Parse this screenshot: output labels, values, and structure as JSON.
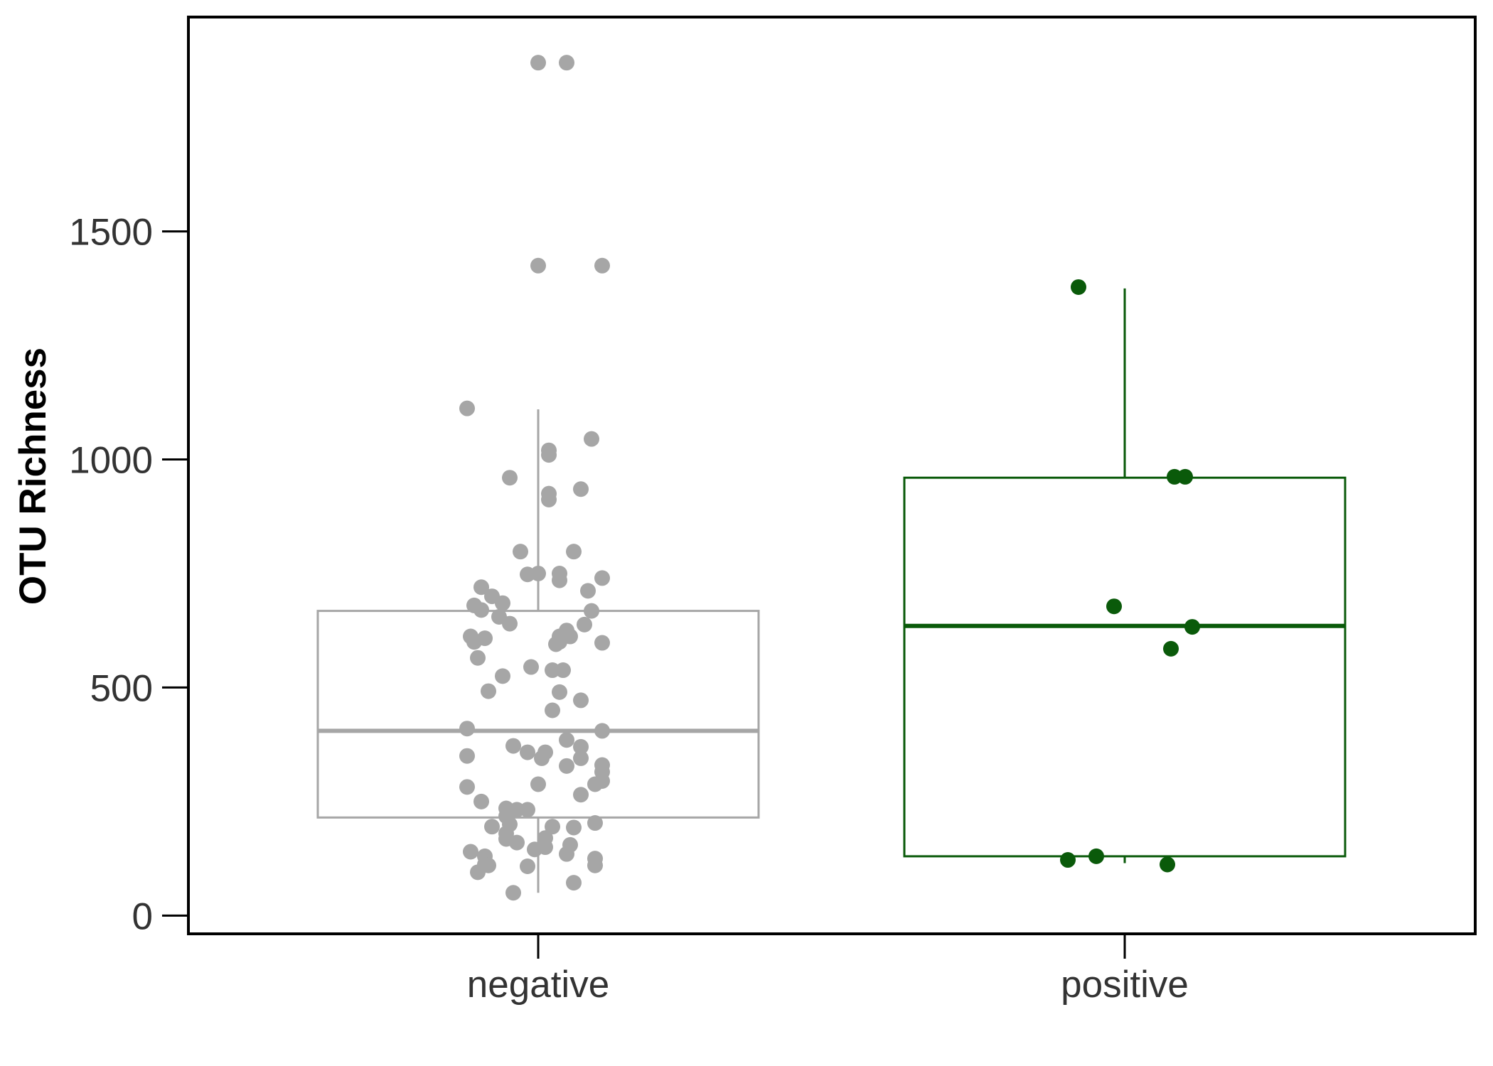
{
  "chart_data": {
    "type": "box",
    "title": "",
    "xlabel": "",
    "ylabel": "OTU Richness",
    "ylim": [
      -40,
      1970
    ],
    "yticks": [
      0,
      500,
      1000,
      1500
    ],
    "categories": [
      "negative",
      "positive"
    ],
    "colors": {
      "negative": "#a6a6a6",
      "positive": "#0a5a0a",
      "axis": "#000000",
      "text": "#333333"
    },
    "boxes": [
      {
        "category": "negative",
        "q1": 215,
        "median": 405,
        "q3": 668,
        "whisker_low": 50,
        "whisker_high": 1110
      },
      {
        "category": "positive",
        "q1": 130,
        "median": 635,
        "q3": 960,
        "whisker_low": 115,
        "whisker_high": 1375
      }
    ],
    "points": {
      "negative": [
        {
          "x": 0.0,
          "y": 1870
        },
        {
          "x": 0.04,
          "y": 1870
        },
        {
          "x": 0.0,
          "y": 1425
        },
        {
          "x": 0.09,
          "y": 1425
        },
        {
          "x": -0.1,
          "y": 1112
        },
        {
          "x": 0.015,
          "y": 1010
        },
        {
          "x": 0.015,
          "y": 1020
        },
        {
          "x": 0.075,
          "y": 1045
        },
        {
          "x": -0.04,
          "y": 960
        },
        {
          "x": 0.06,
          "y": 935
        },
        {
          "x": 0.015,
          "y": 925
        },
        {
          "x": 0.015,
          "y": 912
        },
        {
          "x": -0.025,
          "y": 798
        },
        {
          "x": 0.05,
          "y": 798
        },
        {
          "x": -0.015,
          "y": 748
        },
        {
          "x": 0.0,
          "y": 750
        },
        {
          "x": 0.03,
          "y": 750
        },
        {
          "x": 0.03,
          "y": 735
        },
        {
          "x": 0.09,
          "y": 740
        },
        {
          "x": -0.08,
          "y": 720
        },
        {
          "x": 0.07,
          "y": 712
        },
        {
          "x": -0.065,
          "y": 700
        },
        {
          "x": -0.05,
          "y": 685
        },
        {
          "x": -0.09,
          "y": 680
        },
        {
          "x": -0.08,
          "y": 670
        },
        {
          "x": 0.075,
          "y": 668
        },
        {
          "x": -0.055,
          "y": 655
        },
        {
          "x": -0.04,
          "y": 640
        },
        {
          "x": 0.065,
          "y": 638
        },
        {
          "x": 0.04,
          "y": 625
        },
        {
          "x": 0.03,
          "y": 612
        },
        {
          "x": 0.045,
          "y": 612
        },
        {
          "x": -0.095,
          "y": 612
        },
        {
          "x": -0.075,
          "y": 608
        },
        {
          "x": -0.09,
          "y": 600
        },
        {
          "x": 0.03,
          "y": 600
        },
        {
          "x": 0.09,
          "y": 598
        },
        {
          "x": 0.025,
          "y": 595
        },
        {
          "x": -0.085,
          "y": 565
        },
        {
          "x": -0.01,
          "y": 545
        },
        {
          "x": 0.02,
          "y": 538
        },
        {
          "x": 0.035,
          "y": 538
        },
        {
          "x": -0.05,
          "y": 525
        },
        {
          "x": -0.07,
          "y": 492
        },
        {
          "x": 0.03,
          "y": 490
        },
        {
          "x": 0.06,
          "y": 472
        },
        {
          "x": 0.02,
          "y": 450
        },
        {
          "x": -0.1,
          "y": 410
        },
        {
          "x": 0.09,
          "y": 405
        },
        {
          "x": 0.04,
          "y": 385
        },
        {
          "x": -0.035,
          "y": 372
        },
        {
          "x": 0.06,
          "y": 370
        },
        {
          "x": -0.015,
          "y": 358
        },
        {
          "x": 0.01,
          "y": 358
        },
        {
          "x": -0.1,
          "y": 350
        },
        {
          "x": 0.005,
          "y": 345
        },
        {
          "x": 0.06,
          "y": 345
        },
        {
          "x": 0.09,
          "y": 330
        },
        {
          "x": 0.04,
          "y": 328
        },
        {
          "x": 0.09,
          "y": 315
        },
        {
          "x": 0.09,
          "y": 295
        },
        {
          "x": 0.08,
          "y": 288
        },
        {
          "x": 0.0,
          "y": 288
        },
        {
          "x": -0.1,
          "y": 282
        },
        {
          "x": 0.06,
          "y": 265
        },
        {
          "x": -0.08,
          "y": 250
        },
        {
          "x": -0.045,
          "y": 235
        },
        {
          "x": -0.03,
          "y": 232
        },
        {
          "x": -0.015,
          "y": 232
        },
        {
          "x": -0.045,
          "y": 218
        },
        {
          "x": 0.08,
          "y": 203
        },
        {
          "x": -0.04,
          "y": 200
        },
        {
          "x": 0.02,
          "y": 195
        },
        {
          "x": 0.05,
          "y": 193
        },
        {
          "x": -0.065,
          "y": 195
        },
        {
          "x": -0.045,
          "y": 180
        },
        {
          "x": 0.01,
          "y": 170
        },
        {
          "x": -0.045,
          "y": 168
        },
        {
          "x": -0.03,
          "y": 160
        },
        {
          "x": 0.045,
          "y": 155
        },
        {
          "x": 0.01,
          "y": 150
        },
        {
          "x": -0.005,
          "y": 145
        },
        {
          "x": -0.095,
          "y": 140
        },
        {
          "x": 0.04,
          "y": 135
        },
        {
          "x": -0.075,
          "y": 130
        },
        {
          "x": 0.08,
          "y": 125
        },
        {
          "x": -0.075,
          "y": 112
        },
        {
          "x": -0.07,
          "y": 110
        },
        {
          "x": 0.08,
          "y": 110
        },
        {
          "x": -0.015,
          "y": 108
        },
        {
          "x": -0.085,
          "y": 95
        },
        {
          "x": 0.05,
          "y": 72
        },
        {
          "x": -0.035,
          "y": 50
        }
      ],
      "positive": [
        {
          "x": -0.065,
          "y": 1378
        },
        {
          "x": 0.07,
          "y": 962
        },
        {
          "x": 0.085,
          "y": 962
        },
        {
          "x": -0.015,
          "y": 678
        },
        {
          "x": 0.095,
          "y": 633
        },
        {
          "x": 0.065,
          "y": 585
        },
        {
          "x": -0.04,
          "y": 130
        },
        {
          "x": -0.08,
          "y": 122
        },
        {
          "x": 0.06,
          "y": 112
        }
      ]
    }
  }
}
